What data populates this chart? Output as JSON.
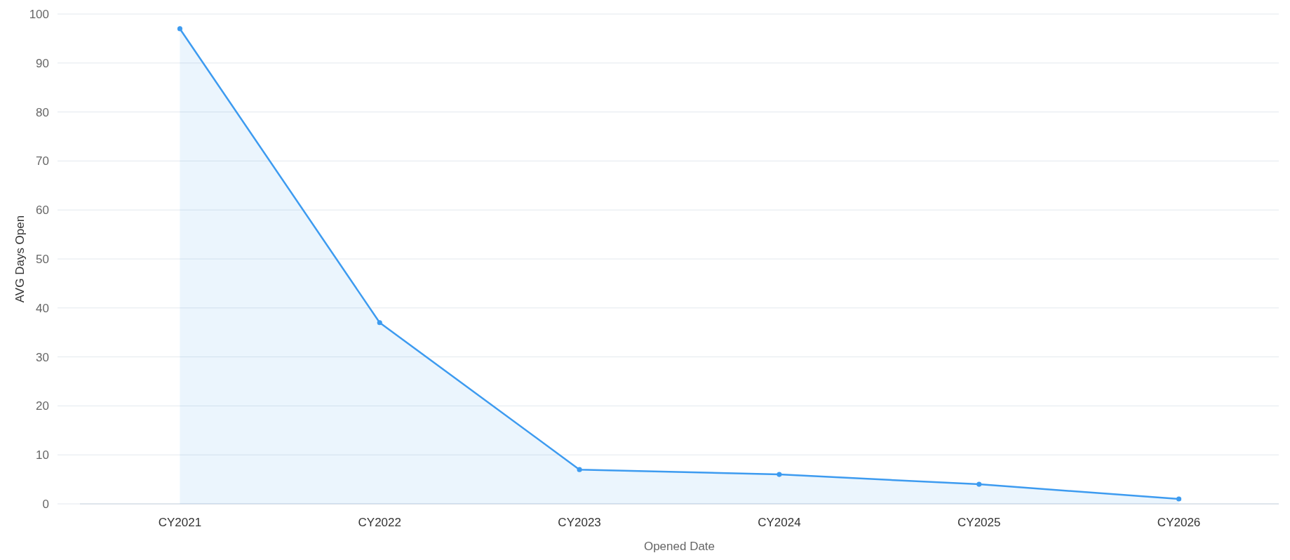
{
  "chart_data": {
    "type": "area",
    "xlabel": "Opened Date",
    "ylabel": "AVG Days Open",
    "categories": [
      "CY2021",
      "CY2022",
      "CY2023",
      "CY2024",
      "CY2025",
      "CY2026"
    ],
    "series": [
      {
        "color": "#3d9bf0",
        "values": [
          97,
          37,
          7,
          6,
          4,
          1
        ]
      }
    ],
    "ylim": [
      0,
      100
    ],
    "yticks": [
      0,
      10,
      20,
      30,
      40,
      50,
      60,
      70,
      80,
      90,
      100
    ],
    "grid": "y",
    "marker": "circle",
    "line_style": "solid"
  }
}
